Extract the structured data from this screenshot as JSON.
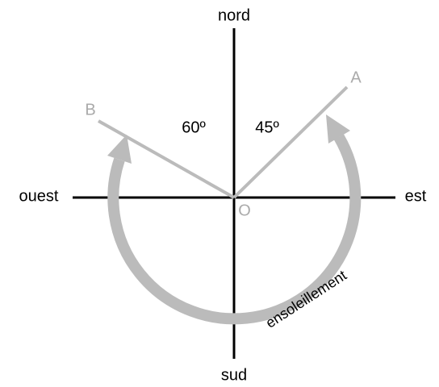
{
  "directions": {
    "north": "nord",
    "south": "sud",
    "west": "ouest",
    "east": "est"
  },
  "points": {
    "a": "A",
    "b": "B",
    "o": "O"
  },
  "angles": [
    "60º",
    "45º"
  ],
  "arc_label": "ensoleillement"
}
